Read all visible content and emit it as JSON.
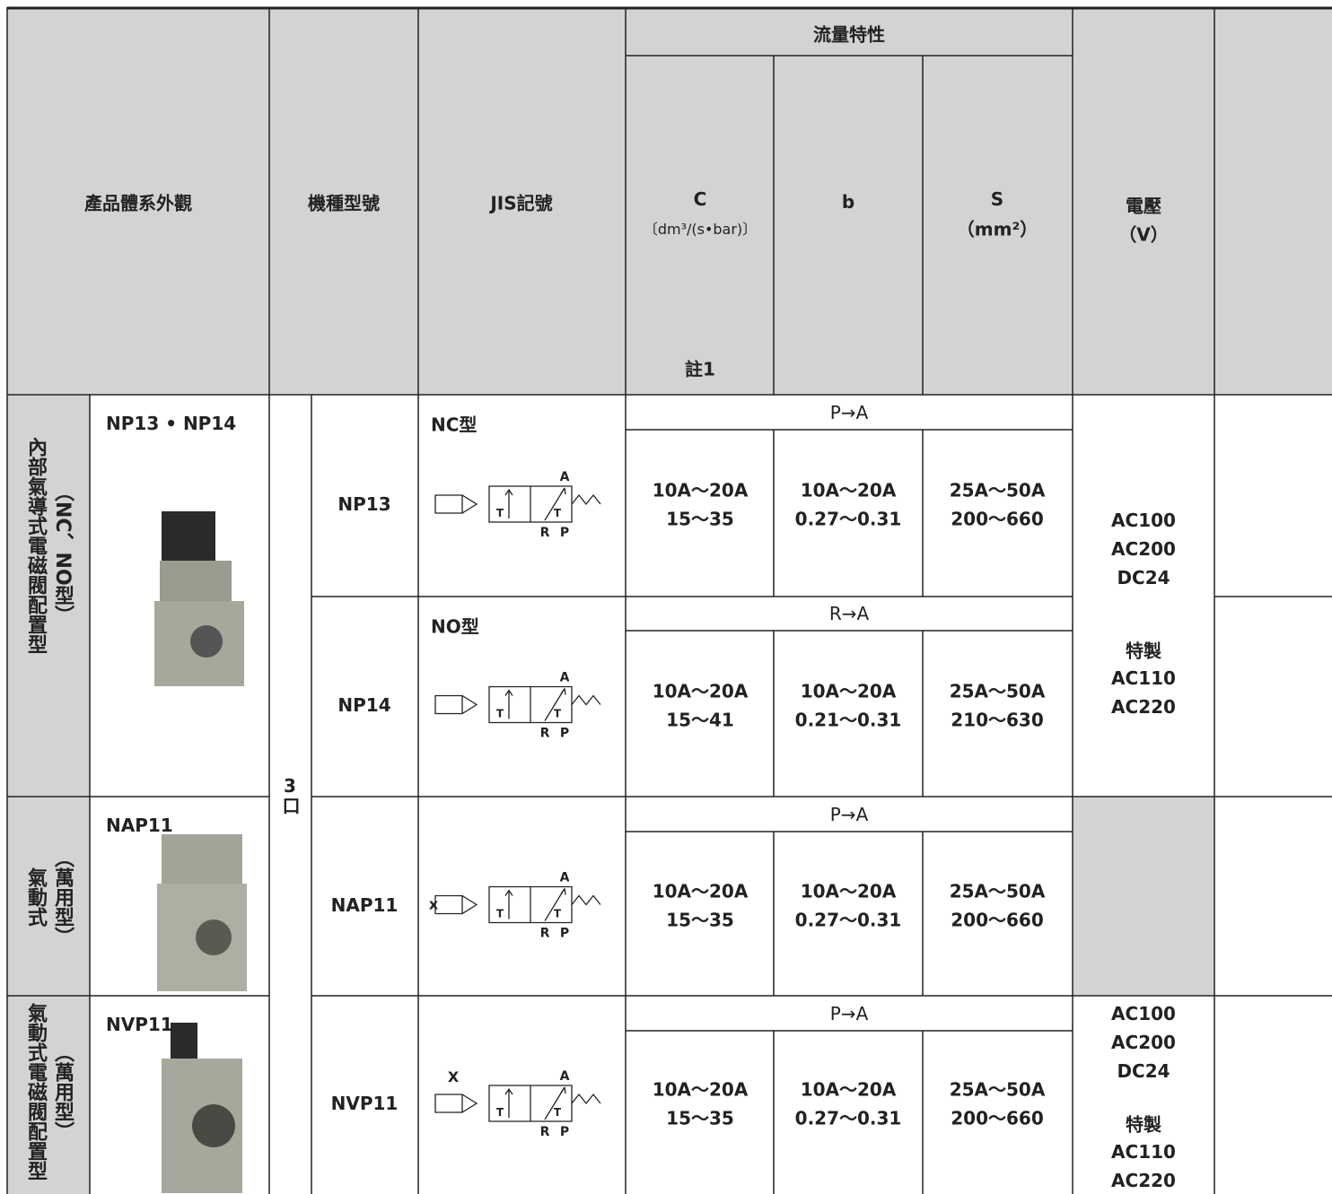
{
  "header": {
    "appearance": "產品體系外觀",
    "model": "機種型號",
    "jis": "JIS記號",
    "flow": "流量特性",
    "c": "C",
    "c_unit": "〔dm³/(s•bar)〕",
    "c_note": "註1",
    "b": "b",
    "s": "S",
    "s_unit": "（mm²）",
    "voltage": "電壓",
    "voltage_unit": "（V）"
  },
  "groups": [
    {
      "label": "內部氣導式電磁閥配置型",
      "sublabel": "（NC、NO型）",
      "series": "NP13 • NP14"
    },
    {
      "label": "氣動式",
      "sublabel": "（萬用型）",
      "series": "NAP11"
    },
    {
      "label": "氣動式電磁閥配置型",
      "sublabel": "（萬用型）",
      "series": "NVP11"
    }
  ],
  "ports": "3口",
  "rows": [
    {
      "model": "NP13",
      "jis_type": "NC型",
      "symbol": {
        "a": "A",
        "r": "R",
        "p": "P",
        "t": "T"
      },
      "direction": "P→A",
      "c": [
        "10A～20A",
        "15～35"
      ],
      "b": [
        "10A～20A",
        "0.27～0.31"
      ],
      "s": [
        "25A～50A",
        "200～660"
      ]
    },
    {
      "model": "NP14",
      "jis_type": "NO型",
      "symbol": {
        "a": "A",
        "r": "R",
        "p": "P",
        "t": "T"
      },
      "direction": "R→A",
      "c": [
        "10A～20A",
        "15～41"
      ],
      "b": [
        "10A～20A",
        "0.21～0.31"
      ],
      "s": [
        "25A～50A",
        "210～630"
      ]
    },
    {
      "model": "NAP11",
      "symbol": {
        "a": "A",
        "r": "R",
        "p": "P",
        "t": "T",
        "x": "x"
      },
      "direction": "P→A",
      "c": [
        "10A～20A",
        "15～35"
      ],
      "b": [
        "10A～20A",
        "0.27～0.31"
      ],
      "s": [
        "25A～50A",
        "200～660"
      ]
    },
    {
      "model": "NVP11",
      "symbol": {
        "a": "A",
        "r": "R",
        "p": "P",
        "t": "T",
        "x": "X"
      },
      "direction": "P→A",
      "c": [
        "10A～20A",
        "15～35"
      ],
      "b": [
        "10A～20A",
        "0.27～0.31"
      ],
      "s": [
        "25A～50A",
        "200～660"
      ]
    }
  ],
  "voltage": [
    [
      "AC100",
      "AC200",
      "DC24",
      "特製",
      "AC110",
      "AC220"
    ],
    [
      "AC100",
      "AC200",
      "DC24",
      "特製",
      "AC110",
      "AC220"
    ]
  ]
}
